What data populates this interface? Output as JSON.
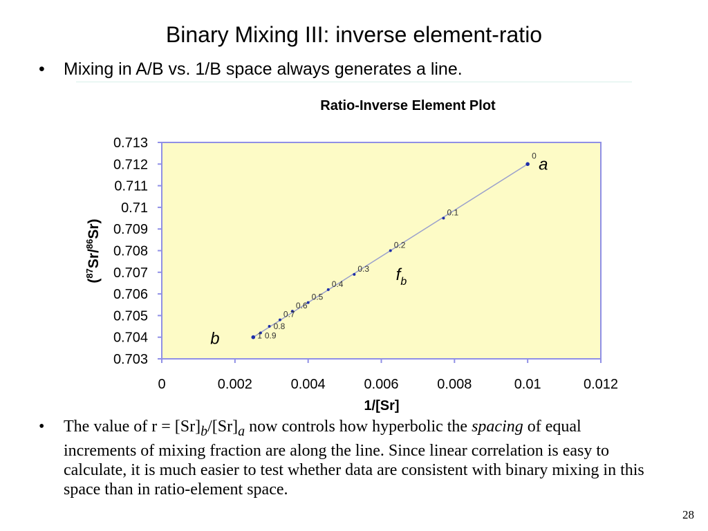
{
  "slide": {
    "title": "Binary Mixing III: inverse element-ratio",
    "bullet1": "Mixing in A/B vs. 1/B space always generates a line.",
    "bullet2_parts": {
      "p1": "The value of r = [Sr]",
      "sub_b": "b",
      "p2": "/[Sr]",
      "sub_a": "a",
      "p3": " now controls how hyperbolic the ",
      "italic": "spacing",
      "p4": " of equal increments of mixing fraction are along the line.  Since linear correlation is easy to calculate, it is much easier to test whether data are consistent with binary mixing in this space than in ratio-element space."
    },
    "page_number": "28",
    "bullet_glyph": "•"
  },
  "chart_data": {
    "type": "line",
    "title": "Ratio-Inverse Element Plot",
    "xlabel": "1/[Sr]",
    "ylabel_parts": {
      "open": "(",
      "sup1": "87",
      "mid": "Sr/",
      "sup2": "86",
      "close": "Sr)"
    },
    "xlim": [
      0,
      0.012
    ],
    "ylim": [
      0.703,
      0.713
    ],
    "x_ticks": [
      0,
      0.002,
      0.004,
      0.006,
      0.008,
      0.01,
      0.012
    ],
    "x_tick_labels": [
      "0",
      "0.002",
      "0.004",
      "0.006",
      "0.008",
      "0.01",
      "0.012"
    ],
    "y_ticks": [
      0.703,
      0.704,
      0.705,
      0.706,
      0.707,
      0.708,
      0.709,
      0.71,
      0.711,
      0.712,
      0.713
    ],
    "y_tick_labels": [
      "0.703",
      "0.704",
      "0.705",
      "0.706",
      "0.707",
      "0.708",
      "0.709",
      "0.71",
      "0.711",
      "0.712",
      "0.713"
    ],
    "grid": false,
    "plot_background": "#fdfbc6",
    "axis_color": "#8f8fe6",
    "line_color": "#9aa0cc",
    "point_color": "#1f2fa8",
    "points": [
      {
        "x": 0.01,
        "y": 0.712,
        "label": "0"
      },
      {
        "x": 0.0077,
        "y": 0.7095,
        "label": "0.1"
      },
      {
        "x": 0.00625,
        "y": 0.708,
        "label": "0.2"
      },
      {
        "x": 0.00526,
        "y": 0.7069,
        "label": "0.3"
      },
      {
        "x": 0.00455,
        "y": 0.7062,
        "label": "0.4"
      },
      {
        "x": 0.004,
        "y": 0.7056,
        "label": "0.5"
      },
      {
        "x": 0.00357,
        "y": 0.7052,
        "label": "0.6"
      },
      {
        "x": 0.00323,
        "y": 0.7048,
        "label": "0.7"
      },
      {
        "x": 0.00294,
        "y": 0.7045,
        "label": "0.8"
      },
      {
        "x": 0.0027,
        "y": 0.7042,
        "label": "0.9"
      },
      {
        "x": 0.0025,
        "y": 0.704,
        "label": "1"
      }
    ],
    "annotations": {
      "a": "a",
      "b": "b",
      "fb_main": "f",
      "fb_sub": "b"
    }
  }
}
